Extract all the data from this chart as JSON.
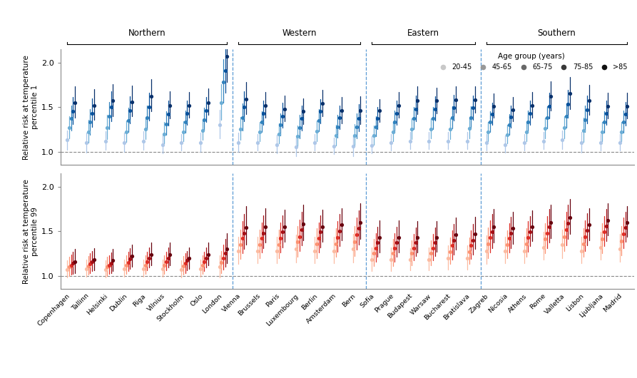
{
  "cities": [
    "Copenhagen",
    "Tallinn",
    "Helsinki",
    "Dublin",
    "Riga",
    "Vilnius",
    "Stockholm",
    "Oslo",
    "London",
    "Vienna",
    "Brussels",
    "Paris",
    "Luxembourg",
    "Berlin",
    "Amsterdam",
    "Bern",
    "Sofia",
    "Prague",
    "Budapest",
    "Warsaw",
    "Bucharest",
    "Bratislava",
    "Zagreb",
    "Nicosia",
    "Athens",
    "Rome",
    "Valletta",
    "Lisbon",
    "Ljubljana",
    "Madrid"
  ],
  "region_ranges": {
    "Northern": [
      0,
      8
    ],
    "Western": [
      9,
      15
    ],
    "Eastern": [
      16,
      21
    ],
    "Southern": [
      22,
      29
    ]
  },
  "region_order": [
    "Northern",
    "Western",
    "Eastern",
    "Southern"
  ],
  "region_separators": [
    8.5,
    15.5,
    21.5
  ],
  "age_groups": [
    "20-45",
    "45-65",
    "65-75",
    "75-85",
    ">85"
  ],
  "blue_colors": [
    "#aec7e8",
    "#6baed6",
    "#3182bd",
    "#08519c",
    "#08306b"
  ],
  "red_colors": [
    "#fcbba1",
    "#fc9272",
    "#de2d26",
    "#a50f15",
    "#67000d"
  ],
  "gray_colors": [
    "#c8c8c8",
    "#989898",
    "#686868",
    "#383838",
    "#101010"
  ],
  "cold_data": {
    "Copenhagen": {
      "centers": [
        1.13,
        1.27,
        1.37,
        1.45,
        1.55
      ],
      "lo": [
        1.02,
        1.15,
        1.24,
        1.31,
        1.38
      ],
      "hi": [
        1.24,
        1.4,
        1.52,
        1.61,
        1.73
      ]
    },
    "Tallinn": {
      "centers": [
        1.1,
        1.22,
        1.33,
        1.43,
        1.52
      ],
      "lo": [
        0.99,
        1.1,
        1.19,
        1.28,
        1.36
      ],
      "hi": [
        1.21,
        1.36,
        1.48,
        1.6,
        1.7
      ]
    },
    "Helsinki": {
      "centers": [
        1.12,
        1.27,
        1.4,
        1.5,
        1.57
      ],
      "lo": [
        1.02,
        1.14,
        1.25,
        1.34,
        1.4
      ],
      "hi": [
        1.23,
        1.41,
        1.56,
        1.68,
        1.76
      ]
    },
    "Dublin": {
      "centers": [
        1.1,
        1.22,
        1.35,
        1.46,
        1.56
      ],
      "lo": [
        1.0,
        1.11,
        1.22,
        1.32,
        1.4
      ],
      "hi": [
        1.21,
        1.35,
        1.49,
        1.62,
        1.74
      ]
    },
    "Riga": {
      "centers": [
        1.12,
        1.25,
        1.38,
        1.5,
        1.62
      ],
      "lo": [
        1.02,
        1.14,
        1.25,
        1.35,
        1.45
      ],
      "hi": [
        1.23,
        1.38,
        1.52,
        1.66,
        1.81
      ]
    },
    "Vilnius": {
      "centers": [
        1.08,
        1.2,
        1.31,
        1.42,
        1.52
      ],
      "lo": [
        0.98,
        1.09,
        1.19,
        1.29,
        1.37
      ],
      "hi": [
        1.19,
        1.33,
        1.45,
        1.57,
        1.68
      ]
    },
    "Stockholm": {
      "centers": [
        1.1,
        1.22,
        1.33,
        1.43,
        1.52
      ],
      "lo": [
        1.01,
        1.12,
        1.21,
        1.3,
        1.38
      ],
      "hi": [
        1.2,
        1.34,
        1.46,
        1.57,
        1.67
      ]
    },
    "Oslo": {
      "centers": [
        1.1,
        1.24,
        1.36,
        1.46,
        1.55
      ],
      "lo": [
        1.0,
        1.13,
        1.24,
        1.33,
        1.41
      ],
      "hi": [
        1.21,
        1.36,
        1.49,
        1.61,
        1.71
      ]
    },
    "London": {
      "centers": [
        1.3,
        1.55,
        1.78,
        1.91,
        2.07
      ],
      "lo": [
        1.15,
        1.36,
        1.55,
        1.66,
        1.78
      ],
      "hi": [
        1.47,
        1.76,
        2.04,
        2.19,
        2.38
      ]
    },
    "Vienna": {
      "centers": [
        1.1,
        1.25,
        1.38,
        1.5,
        1.59
      ],
      "lo": [
        1.0,
        1.13,
        1.24,
        1.34,
        1.42
      ],
      "hi": [
        1.21,
        1.39,
        1.54,
        1.68,
        1.78
      ]
    },
    "Brussels": {
      "centers": [
        1.1,
        1.22,
        1.33,
        1.43,
        1.52
      ],
      "lo": [
        1.01,
        1.12,
        1.22,
        1.3,
        1.38
      ],
      "hi": [
        1.2,
        1.33,
        1.45,
        1.57,
        1.67
      ]
    },
    "Paris": {
      "centers": [
        1.08,
        1.2,
        1.3,
        1.4,
        1.48
      ],
      "lo": [
        0.98,
        1.09,
        1.18,
        1.27,
        1.34
      ],
      "hi": [
        1.19,
        1.32,
        1.43,
        1.55,
        1.63
      ]
    },
    "Luxembourg": {
      "centers": [
        1.05,
        1.17,
        1.27,
        1.37,
        1.45
      ],
      "lo": [
        0.95,
        1.06,
        1.15,
        1.24,
        1.31
      ],
      "hi": [
        1.16,
        1.29,
        1.41,
        1.52,
        1.6
      ]
    },
    "Berlin": {
      "centers": [
        1.1,
        1.23,
        1.35,
        1.45,
        1.54
      ],
      "lo": [
        1.01,
        1.12,
        1.23,
        1.32,
        1.4
      ],
      "hi": [
        1.2,
        1.35,
        1.48,
        1.59,
        1.69
      ]
    },
    "Amsterdam": {
      "centers": [
        1.06,
        1.18,
        1.28,
        1.38,
        1.46
      ],
      "lo": [
        0.97,
        1.07,
        1.16,
        1.25,
        1.32
      ],
      "hi": [
        1.16,
        1.3,
        1.41,
        1.52,
        1.61
      ]
    },
    "Bern": {
      "centers": [
        1.06,
        1.18,
        1.28,
        1.37,
        1.46
      ],
      "lo": [
        0.95,
        1.06,
        1.15,
        1.23,
        1.31
      ],
      "hi": [
        1.18,
        1.31,
        1.43,
        1.53,
        1.62
      ]
    },
    "Sofia": {
      "centers": [
        1.07,
        1.18,
        1.28,
        1.37,
        1.46
      ],
      "lo": [
        0.98,
        1.08,
        1.17,
        1.25,
        1.33
      ],
      "hi": [
        1.17,
        1.29,
        1.4,
        1.5,
        1.59
      ]
    },
    "Prague": {
      "centers": [
        1.1,
        1.22,
        1.33,
        1.43,
        1.52
      ],
      "lo": [
        1.01,
        1.12,
        1.21,
        1.3,
        1.38
      ],
      "hi": [
        1.2,
        1.33,
        1.46,
        1.57,
        1.67
      ]
    },
    "Budapest": {
      "centers": [
        1.12,
        1.25,
        1.37,
        1.48,
        1.57
      ],
      "lo": [
        1.03,
        1.14,
        1.25,
        1.34,
        1.42
      ],
      "hi": [
        1.22,
        1.37,
        1.5,
        1.63,
        1.73
      ]
    },
    "Warsaw": {
      "centers": [
        1.12,
        1.25,
        1.37,
        1.48,
        1.57
      ],
      "lo": [
        1.03,
        1.15,
        1.25,
        1.35,
        1.43
      ],
      "hi": [
        1.22,
        1.37,
        1.5,
        1.62,
        1.72
      ]
    },
    "Bucharest": {
      "centers": [
        1.12,
        1.25,
        1.38,
        1.49,
        1.58
      ],
      "lo": [
        1.03,
        1.14,
        1.26,
        1.35,
        1.44
      ],
      "hi": [
        1.22,
        1.37,
        1.51,
        1.64,
        1.73
      ]
    },
    "Bratislava": {
      "centers": [
        1.12,
        1.26,
        1.38,
        1.49,
        1.58
      ],
      "lo": [
        1.03,
        1.15,
        1.26,
        1.36,
        1.44
      ],
      "hi": [
        1.22,
        1.38,
        1.51,
        1.63,
        1.73
      ]
    },
    "Zagreb": {
      "centers": [
        1.1,
        1.22,
        1.33,
        1.42,
        1.51
      ],
      "lo": [
        1.01,
        1.12,
        1.22,
        1.3,
        1.38
      ],
      "hi": [
        1.2,
        1.33,
        1.45,
        1.55,
        1.65
      ]
    },
    "Nicosia": {
      "centers": [
        1.08,
        1.19,
        1.3,
        1.39,
        1.47
      ],
      "lo": [
        0.99,
        1.09,
        1.19,
        1.27,
        1.34
      ],
      "hi": [
        1.18,
        1.3,
        1.42,
        1.52,
        1.61
      ]
    },
    "Athens": {
      "centers": [
        1.1,
        1.22,
        1.33,
        1.43,
        1.52
      ],
      "lo": [
        1.01,
        1.12,
        1.21,
        1.3,
        1.38
      ],
      "hi": [
        1.2,
        1.33,
        1.46,
        1.57,
        1.67
      ]
    },
    "Rome": {
      "centers": [
        1.12,
        1.26,
        1.38,
        1.51,
        1.62
      ],
      "lo": [
        1.03,
        1.15,
        1.26,
        1.37,
        1.46
      ],
      "hi": [
        1.22,
        1.38,
        1.51,
        1.66,
        1.79
      ]
    },
    "Valletta": {
      "centers": [
        1.13,
        1.27,
        1.4,
        1.53,
        1.65
      ],
      "lo": [
        1.03,
        1.15,
        1.27,
        1.38,
        1.48
      ],
      "hi": [
        1.24,
        1.4,
        1.54,
        1.69,
        1.84
      ]
    },
    "Lisbon": {
      "centers": [
        1.1,
        1.24,
        1.36,
        1.47,
        1.57
      ],
      "lo": [
        0.99,
        1.11,
        1.22,
        1.32,
        1.41
      ],
      "hi": [
        1.22,
        1.38,
        1.52,
        1.63,
        1.75
      ]
    },
    "Ljubljana": {
      "centers": [
        1.1,
        1.22,
        1.33,
        1.43,
        1.51
      ],
      "lo": [
        1.01,
        1.12,
        1.21,
        1.3,
        1.37
      ],
      "hi": [
        1.2,
        1.33,
        1.45,
        1.57,
        1.66
      ]
    },
    "Madrid": {
      "centers": [
        1.1,
        1.22,
        1.33,
        1.42,
        1.51
      ],
      "lo": [
        1.01,
        1.12,
        1.21,
        1.29,
        1.37
      ],
      "hi": [
        1.2,
        1.33,
        1.46,
        1.56,
        1.66
      ]
    }
  },
  "heat_data": {
    "Copenhagen": {
      "centers": [
        1.07,
        1.1,
        1.12,
        1.14,
        1.16
      ],
      "lo": [
        0.98,
        1.0,
        1.01,
        1.02,
        1.03
      ],
      "hi": [
        1.17,
        1.21,
        1.24,
        1.27,
        1.3
      ]
    },
    "Tallinn": {
      "centers": [
        1.08,
        1.11,
        1.13,
        1.16,
        1.18
      ],
      "lo": [
        0.99,
        1.01,
        1.03,
        1.05,
        1.06
      ],
      "hi": [
        1.18,
        1.22,
        1.25,
        1.28,
        1.31
      ]
    },
    "Helsinki": {
      "centers": [
        1.07,
        1.1,
        1.12,
        1.14,
        1.17
      ],
      "lo": [
        0.98,
        1.0,
        1.02,
        1.03,
        1.05
      ],
      "hi": [
        1.17,
        1.21,
        1.23,
        1.26,
        1.3
      ]
    },
    "Dublin": {
      "centers": [
        1.08,
        1.12,
        1.15,
        1.19,
        1.22
      ],
      "lo": [
        0.99,
        1.02,
        1.05,
        1.08,
        1.1
      ],
      "hi": [
        1.18,
        1.23,
        1.27,
        1.31,
        1.35
      ]
    },
    "Riga": {
      "centers": [
        1.08,
        1.12,
        1.16,
        1.2,
        1.24
      ],
      "lo": [
        0.99,
        1.02,
        1.06,
        1.09,
        1.12
      ],
      "hi": [
        1.18,
        1.23,
        1.27,
        1.32,
        1.37
      ]
    },
    "Vilnius": {
      "centers": [
        1.08,
        1.12,
        1.16,
        1.2,
        1.24
      ],
      "lo": [
        0.99,
        1.02,
        1.06,
        1.09,
        1.12
      ],
      "hi": [
        1.18,
        1.23,
        1.27,
        1.32,
        1.37
      ]
    },
    "Stockholm": {
      "centers": [
        1.07,
        1.11,
        1.14,
        1.17,
        1.2
      ],
      "lo": [
        0.98,
        1.01,
        1.03,
        1.06,
        1.08
      ],
      "hi": [
        1.17,
        1.22,
        1.25,
        1.28,
        1.32
      ]
    },
    "Oslo": {
      "centers": [
        1.08,
        1.12,
        1.16,
        1.2,
        1.24
      ],
      "lo": [
        0.99,
        1.02,
        1.05,
        1.09,
        1.12
      ],
      "hi": [
        1.18,
        1.23,
        1.27,
        1.32,
        1.37
      ]
    },
    "London": {
      "centers": [
        1.1,
        1.15,
        1.2,
        1.25,
        1.3
      ],
      "lo": [
        0.98,
        1.03,
        1.07,
        1.1,
        1.14
      ],
      "hi": [
        1.23,
        1.28,
        1.35,
        1.41,
        1.48
      ]
    },
    "Vienna": {
      "centers": [
        1.28,
        1.35,
        1.42,
        1.48,
        1.54
      ],
      "lo": [
        1.13,
        1.19,
        1.25,
        1.3,
        1.35
      ],
      "hi": [
        1.44,
        1.52,
        1.61,
        1.69,
        1.78
      ]
    },
    "Brussels": {
      "centers": [
        1.28,
        1.35,
        1.42,
        1.48,
        1.55
      ],
      "lo": [
        1.14,
        1.2,
        1.26,
        1.31,
        1.37
      ],
      "hi": [
        1.44,
        1.52,
        1.6,
        1.68,
        1.76
      ]
    },
    "Paris": {
      "centers": [
        1.28,
        1.35,
        1.42,
        1.49,
        1.55
      ],
      "lo": [
        1.14,
        1.2,
        1.26,
        1.32,
        1.38
      ],
      "hi": [
        1.44,
        1.52,
        1.6,
        1.68,
        1.74
      ]
    },
    "Luxembourg": {
      "centers": [
        1.3,
        1.38,
        1.44,
        1.52,
        1.58
      ],
      "lo": [
        1.15,
        1.21,
        1.28,
        1.34,
        1.4
      ],
      "hi": [
        1.46,
        1.56,
        1.63,
        1.72,
        1.8
      ]
    },
    "Berlin": {
      "centers": [
        1.28,
        1.36,
        1.42,
        1.49,
        1.55
      ],
      "lo": [
        1.14,
        1.2,
        1.26,
        1.32,
        1.38
      ],
      "hi": [
        1.44,
        1.53,
        1.6,
        1.68,
        1.74
      ]
    },
    "Amsterdam": {
      "centers": [
        1.28,
        1.36,
        1.43,
        1.5,
        1.57
      ],
      "lo": [
        1.14,
        1.21,
        1.27,
        1.33,
        1.4
      ],
      "hi": [
        1.44,
        1.53,
        1.61,
        1.69,
        1.76
      ]
    },
    "Bern": {
      "centers": [
        1.3,
        1.38,
        1.46,
        1.53,
        1.6
      ],
      "lo": [
        1.15,
        1.22,
        1.29,
        1.35,
        1.41
      ],
      "hi": [
        1.47,
        1.56,
        1.65,
        1.73,
        1.81
      ]
    },
    "Sofia": {
      "centers": [
        1.18,
        1.25,
        1.31,
        1.37,
        1.43
      ],
      "lo": [
        1.05,
        1.11,
        1.16,
        1.21,
        1.26
      ],
      "hi": [
        1.32,
        1.41,
        1.48,
        1.55,
        1.62
      ]
    },
    "Prague": {
      "centers": [
        1.18,
        1.25,
        1.31,
        1.37,
        1.43
      ],
      "lo": [
        1.05,
        1.11,
        1.16,
        1.21,
        1.26
      ],
      "hi": [
        1.32,
        1.41,
        1.48,
        1.55,
        1.62
      ]
    },
    "Budapest": {
      "centers": [
        1.18,
        1.25,
        1.31,
        1.37,
        1.43
      ],
      "lo": [
        1.06,
        1.12,
        1.17,
        1.22,
        1.26
      ],
      "hi": [
        1.31,
        1.4,
        1.47,
        1.54,
        1.61
      ]
    },
    "Warsaw": {
      "centers": [
        1.18,
        1.25,
        1.31,
        1.37,
        1.43
      ],
      "lo": [
        1.06,
        1.12,
        1.17,
        1.22,
        1.27
      ],
      "hi": [
        1.32,
        1.4,
        1.47,
        1.54,
        1.61
      ]
    },
    "Bucharest": {
      "centers": [
        1.2,
        1.27,
        1.34,
        1.4,
        1.46
      ],
      "lo": [
        1.07,
        1.13,
        1.18,
        1.24,
        1.29
      ],
      "hi": [
        1.34,
        1.43,
        1.51,
        1.58,
        1.65
      ]
    },
    "Bratislava": {
      "centers": [
        1.2,
        1.27,
        1.34,
        1.4,
        1.47
      ],
      "lo": [
        1.07,
        1.13,
        1.19,
        1.24,
        1.3
      ],
      "hi": [
        1.34,
        1.43,
        1.51,
        1.58,
        1.66
      ]
    },
    "Zagreb": {
      "centers": [
        1.28,
        1.36,
        1.43,
        1.49,
        1.55
      ],
      "lo": [
        1.13,
        1.2,
        1.26,
        1.31,
        1.37
      ],
      "hi": [
        1.45,
        1.54,
        1.62,
        1.69,
        1.75
      ]
    },
    "Nicosia": {
      "centers": [
        1.28,
        1.35,
        1.42,
        1.48,
        1.53
      ],
      "lo": [
        1.14,
        1.2,
        1.26,
        1.31,
        1.36
      ],
      "hi": [
        1.44,
        1.51,
        1.59,
        1.66,
        1.72
      ]
    },
    "Athens": {
      "centers": [
        1.28,
        1.36,
        1.43,
        1.49,
        1.55
      ],
      "lo": [
        1.14,
        1.21,
        1.27,
        1.33,
        1.39
      ],
      "hi": [
        1.44,
        1.53,
        1.61,
        1.67,
        1.73
      ]
    },
    "Rome": {
      "centers": [
        1.32,
        1.41,
        1.48,
        1.55,
        1.6
      ],
      "lo": [
        1.18,
        1.25,
        1.31,
        1.37,
        1.42
      ],
      "hi": [
        1.49,
        1.59,
        1.67,
        1.75,
        1.8
      ]
    },
    "Valletta": {
      "centers": [
        1.35,
        1.44,
        1.52,
        1.59,
        1.65
      ],
      "lo": [
        1.2,
        1.28,
        1.34,
        1.41,
        1.47
      ],
      "hi": [
        1.52,
        1.62,
        1.72,
        1.8,
        1.86
      ]
    },
    "Lisbon": {
      "centers": [
        1.28,
        1.36,
        1.44,
        1.51,
        1.57
      ],
      "lo": [
        1.14,
        1.21,
        1.28,
        1.34,
        1.4
      ],
      "hi": [
        1.44,
        1.53,
        1.62,
        1.7,
        1.76
      ]
    },
    "Ljubljana": {
      "centers": [
        1.32,
        1.41,
        1.49,
        1.56,
        1.62
      ],
      "lo": [
        1.18,
        1.25,
        1.33,
        1.39,
        1.45
      ],
      "hi": [
        1.49,
        1.59,
        1.67,
        1.75,
        1.81
      ]
    },
    "Madrid": {
      "centers": [
        1.3,
        1.39,
        1.47,
        1.54,
        1.6
      ],
      "lo": [
        1.16,
        1.23,
        1.31,
        1.38,
        1.44
      ],
      "hi": [
        1.47,
        1.56,
        1.65,
        1.72,
        1.78
      ]
    }
  },
  "ylim": [
    0.85,
    2.15
  ],
  "yticks": [
    1.0,
    1.5,
    2.0
  ],
  "background_color": "#ffffff",
  "separator_color": "#5b9bd5",
  "hline_color": "#888888",
  "spine_color": "#888888"
}
